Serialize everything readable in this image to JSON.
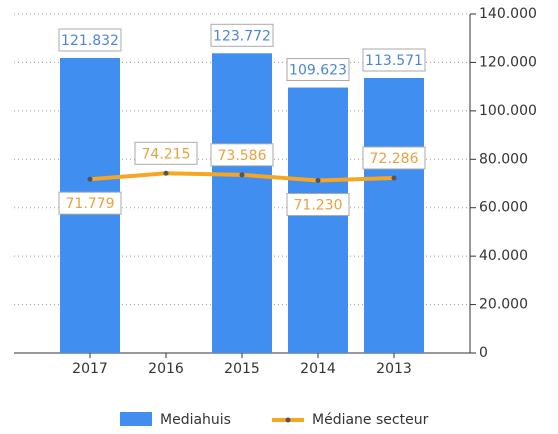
{
  "chart_data": {
    "type": "bar",
    "categories": [
      "2017",
      "2016",
      "2015",
      "2014",
      "2013"
    ],
    "series": [
      {
        "name": "Mediahuis",
        "type": "bar",
        "color": "#3f8ef0",
        "values": [
          121832,
          null,
          123772,
          109623,
          113571
        ],
        "value_labels": [
          "121.832",
          null,
          "123.772",
          "109.623",
          "113.571"
        ]
      },
      {
        "name": "Médiane secteur",
        "type": "line",
        "color": "#f5a623",
        "values": [
          71779,
          74215,
          73586,
          71230,
          72286
        ],
        "value_labels": [
          "71.779",
          "74.215",
          "73.586",
          "71.230",
          "72.286"
        ]
      }
    ],
    "ylim": [
      0,
      140000
    ],
    "yticks": [
      {
        "value": 0,
        "label": "0"
      },
      {
        "value": 20000,
        "label": "20.000"
      },
      {
        "value": 40000,
        "label": "40.000"
      },
      {
        "value": 60000,
        "label": "60.000"
      },
      {
        "value": 80000,
        "label": "80.000"
      },
      {
        "value": 100000,
        "label": "100.000"
      },
      {
        "value": 120000,
        "label": "120.000"
      },
      {
        "value": 140000,
        "label": "140.000"
      }
    ],
    "grid": true,
    "legend": "bottom"
  }
}
